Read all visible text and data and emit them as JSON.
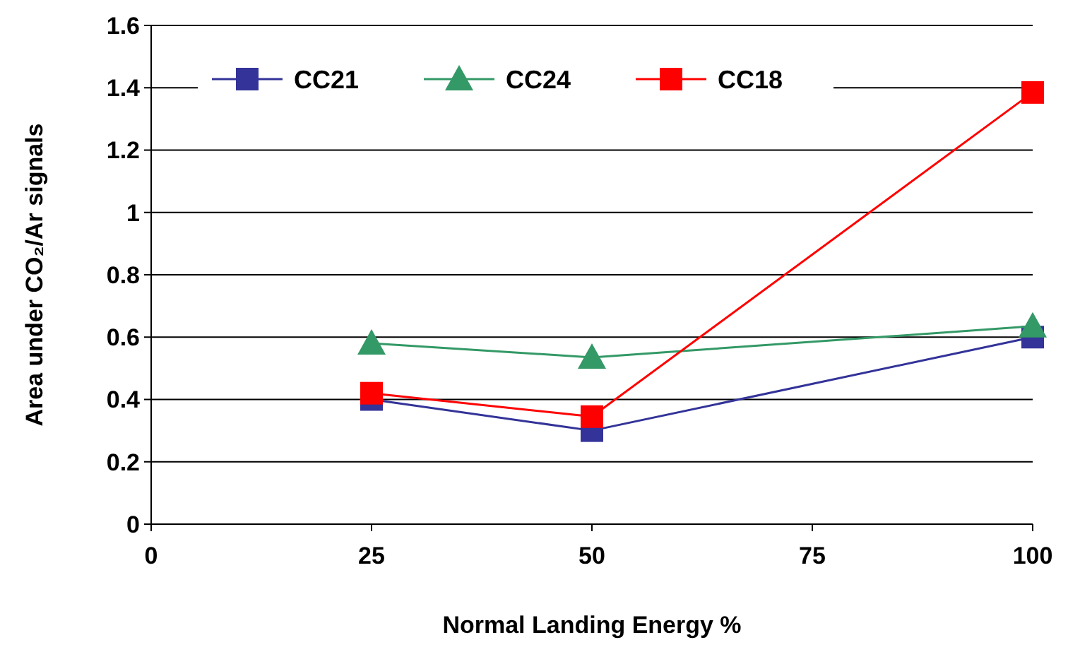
{
  "chart_data": {
    "type": "line",
    "xlabel": "Normal Landing Energy %",
    "ylabel": "Area under CO₂/Ar signals",
    "x": [
      25,
      50,
      100
    ],
    "series": [
      {
        "name": "CC21",
        "color": "#333399",
        "marker": "square",
        "values": [
          0.4,
          0.3,
          0.6
        ]
      },
      {
        "name": "CC24",
        "color": "#339966",
        "marker": "triangle",
        "values": [
          0.58,
          0.535,
          0.635
        ]
      },
      {
        "name": "CC18",
        "color": "#ff0000",
        "marker": "square",
        "values": [
          0.42,
          0.345,
          1.385
        ]
      }
    ],
    "xlim": [
      0,
      100
    ],
    "xticks": [
      0,
      25,
      50,
      75,
      100
    ],
    "ylim": [
      0,
      1.6
    ],
    "yticks": [
      0,
      0.2,
      0.4,
      0.6,
      0.8,
      1,
      1.2,
      1.4,
      1.6
    ],
    "grid": "y",
    "legend": "top",
    "line_style": "solid"
  }
}
